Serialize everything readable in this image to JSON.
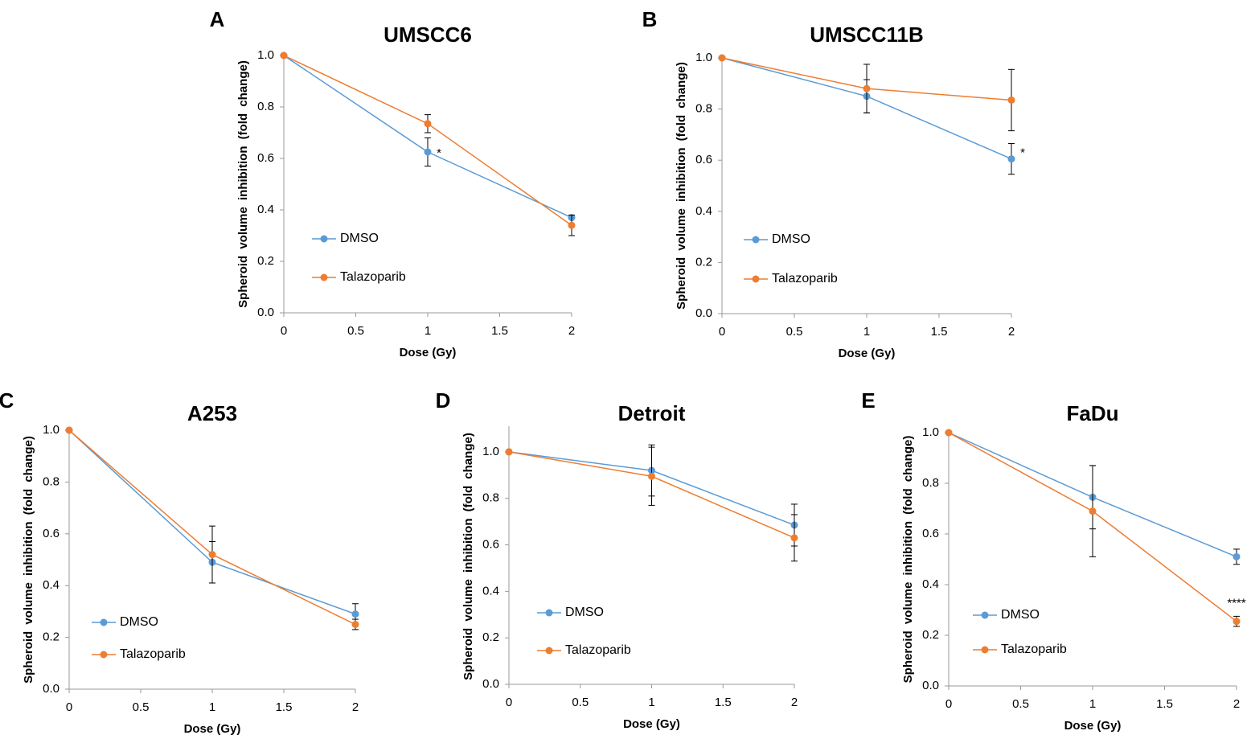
{
  "colors": {
    "DMSO": "#5b9bd5",
    "Talazoparib": "#ed7d31",
    "axis": "#999999",
    "errorbar": "#000000"
  },
  "chart_data": [
    {
      "type": "line",
      "panel": "A",
      "title": "UMSCC6",
      "xlabel": "Dose (Gy)",
      "ylabel": "Spheroid volume inhibition (fold change)",
      "x": [
        0,
        1,
        2
      ],
      "xlim": [
        0,
        2
      ],
      "ylim": [
        0,
        1.0
      ],
      "xticks": [
        "0",
        "0.5",
        "1",
        "1.5",
        "2"
      ],
      "yticks": [
        "0.0",
        "0.2",
        "0.4",
        "0.6",
        "0.8",
        "1.0"
      ],
      "series": [
        {
          "name": "DMSO",
          "values": [
            1.0,
            0.625,
            0.37
          ],
          "errors": [
            0,
            0.055,
            0
          ]
        },
        {
          "name": "Talazoparib",
          "values": [
            1.0,
            0.735,
            0.34
          ],
          "errors": [
            0,
            0.035,
            0.04
          ]
        }
      ],
      "annotations": [
        {
          "x": 1,
          "text": "*",
          "anchor_series": "DMSO"
        }
      ]
    },
    {
      "type": "line",
      "panel": "B",
      "title": "UMSCC11B",
      "xlabel": "Dose (Gy)",
      "ylabel": "Spheroid volume inhibition (fold change)",
      "x": [
        0,
        1,
        2
      ],
      "xlim": [
        0,
        2
      ],
      "ylim": [
        0,
        1.0
      ],
      "xticks": [
        "0",
        "0.5",
        "1",
        "1.5",
        "2"
      ],
      "yticks": [
        "0.0",
        "0.2",
        "0.4",
        "0.6",
        "0.8",
        "1.0"
      ],
      "series": [
        {
          "name": "DMSO",
          "values": [
            1.0,
            0.85,
            0.605
          ],
          "errors": [
            0,
            0.065,
            0.06
          ]
        },
        {
          "name": "Talazoparib",
          "values": [
            1.0,
            0.88,
            0.835
          ],
          "errors": [
            0,
            0.095,
            0.12
          ]
        }
      ],
      "annotations": [
        {
          "x": 2,
          "text": "*",
          "anchor_series": "DMSO"
        }
      ]
    },
    {
      "type": "line",
      "panel": "C",
      "title": "A253",
      "xlabel": "Dose (Gy)",
      "ylabel": "Spheroid volume inhibition (fold change)",
      "x": [
        0,
        1,
        2
      ],
      "xlim": [
        0,
        2
      ],
      "ylim": [
        0,
        1.0
      ],
      "xticks": [
        "0",
        "0.5",
        "1",
        "1.5",
        "2"
      ],
      "yticks": [
        "0.0",
        "0.2",
        "0.4",
        "0.6",
        "0.8",
        "1.0"
      ],
      "series": [
        {
          "name": "DMSO",
          "values": [
            1.0,
            0.49,
            0.29
          ],
          "errors": [
            0,
            0.08,
            0.04
          ]
        },
        {
          "name": "Talazoparib",
          "values": [
            1.0,
            0.52,
            0.25
          ],
          "errors": [
            0,
            0.11,
            0.02
          ]
        }
      ],
      "annotations": []
    },
    {
      "type": "line",
      "panel": "D",
      "title": "Detroit",
      "xlabel": "Dose (Gy)",
      "ylabel": "Spheroid volume inhibition (fold change)",
      "x": [
        0,
        1,
        2
      ],
      "xlim": [
        0,
        2
      ],
      "ylim": [
        0,
        1.1
      ],
      "xticks": [
        "0",
        "0.5",
        "1",
        "1.5",
        "2"
      ],
      "yticks": [
        "0.0",
        "0.2",
        "0.4",
        "0.6",
        "0.8",
        "1.0"
      ],
      "series": [
        {
          "name": "DMSO",
          "values": [
            1.0,
            0.92,
            0.685
          ],
          "errors": [
            0,
            0.11,
            0.09
          ]
        },
        {
          "name": "Talazoparib",
          "values": [
            1.0,
            0.895,
            0.63
          ],
          "errors": [
            0,
            0.125,
            0.1
          ]
        }
      ],
      "annotations": []
    },
    {
      "type": "line",
      "panel": "E",
      "title": "FaDu",
      "xlabel": "Dose (Gy)",
      "ylabel": "Spheroid volume inhibition (fold change)",
      "x": [
        0,
        1,
        2
      ],
      "xlim": [
        0,
        2
      ],
      "ylim": [
        0,
        1.0
      ],
      "xticks": [
        "0",
        "0.5",
        "1",
        "1.5",
        "2"
      ],
      "yticks": [
        "0.0",
        "0.2",
        "0.4",
        "0.6",
        "0.8",
        "1.0"
      ],
      "series": [
        {
          "name": "DMSO",
          "values": [
            1.0,
            0.745,
            0.51
          ],
          "errors": [
            0,
            0.125,
            0.03
          ]
        },
        {
          "name": "Talazoparib",
          "values": [
            1.0,
            0.69,
            0.255
          ],
          "errors": [
            0,
            0.18,
            0.02
          ]
        }
      ],
      "annotations": [
        {
          "x": 2,
          "text": "****",
          "anchor_series": "Talazoparib"
        }
      ]
    }
  ]
}
